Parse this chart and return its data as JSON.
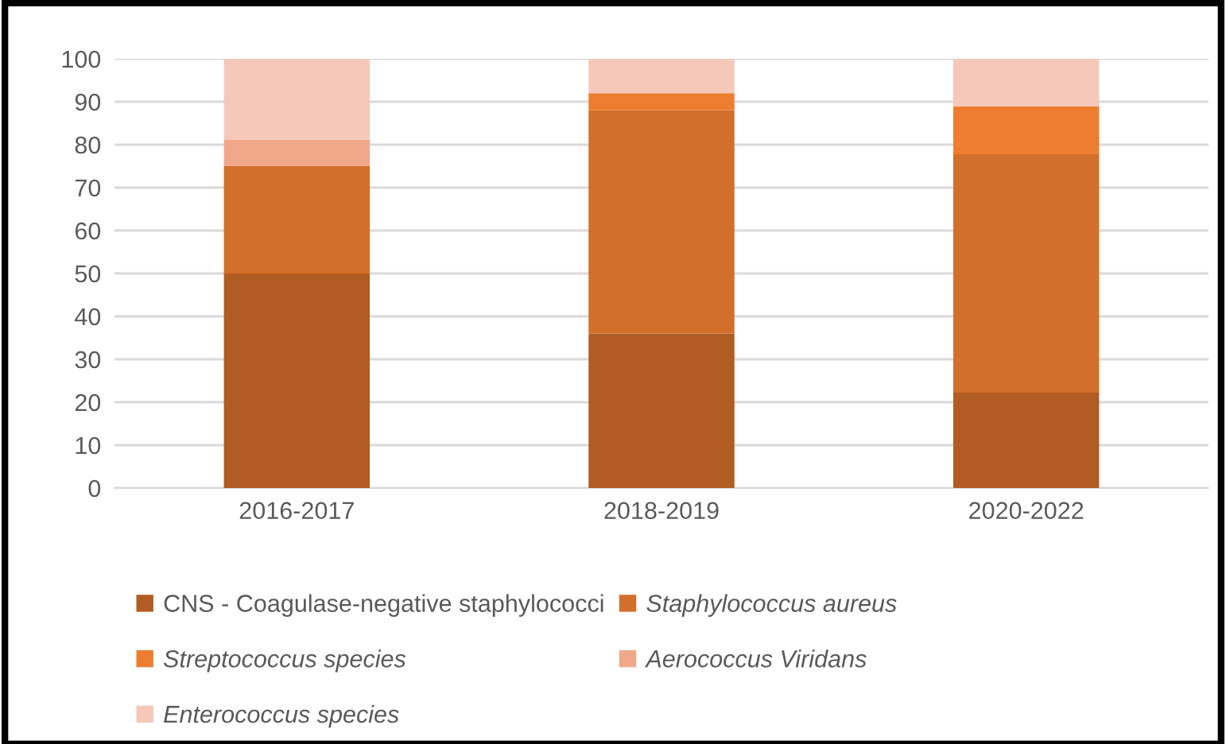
{
  "chart_data": {
    "type": "bar",
    "stacked": true,
    "categories": [
      "2016-2017",
      "2018-2019",
      "2020-2022"
    ],
    "series": [
      {
        "name": "CNS - Coagulase-negative staphylococci",
        "color": "#b15c22",
        "values": [
          50,
          36,
          22.2
        ]
      },
      {
        "name": "Staphylococcus aureus",
        "color": "#d26f2a",
        "values": [
          25,
          52,
          55.6
        ]
      },
      {
        "name": "Streptococcus species",
        "color": "#ed7d31",
        "values": [
          0,
          4,
          11.1
        ]
      },
      {
        "name": "Aerococcus Viridans",
        "color": "#f1a88a",
        "values": [
          6.2,
          0,
          0
        ]
      },
      {
        "name": "Enterococcus species",
        "color": "#f5c8b9",
        "values": [
          18.8,
          8,
          11.1
        ]
      }
    ],
    "ylim": [
      0,
      100
    ],
    "yticks": [
      0,
      10,
      20,
      30,
      40,
      50,
      60,
      70,
      80,
      90,
      100
    ],
    "grid": "y",
    "legend": "bottom"
  }
}
